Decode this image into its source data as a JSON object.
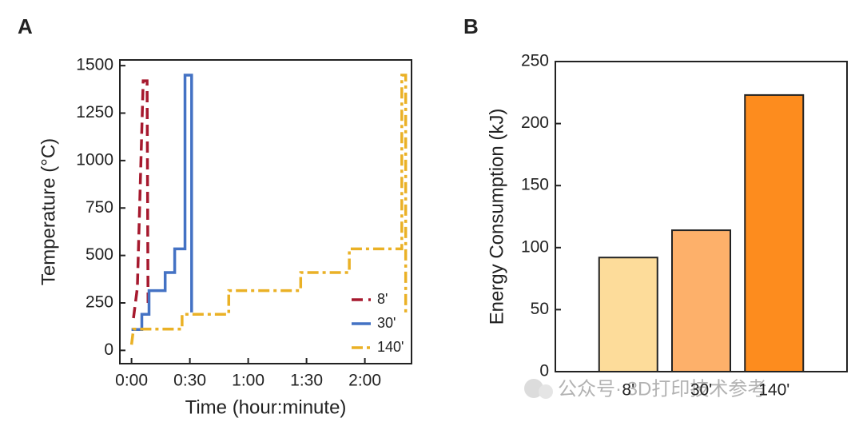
{
  "chart_data": [
    {
      "type": "line",
      "panel": "A",
      "xlabel": "Time (hour:minute)",
      "ylabel": "Temperature (°C)",
      "xlim": [
        -6,
        144
      ],
      "ylim": [
        -70,
        1530
      ],
      "xticks": [
        {
          "value": 0,
          "label": "0:00"
        },
        {
          "value": 30,
          "label": "0:30"
        },
        {
          "value": 60,
          "label": "1:00"
        },
        {
          "value": 90,
          "label": "1:30"
        },
        {
          "value": 120,
          "label": "2:00"
        }
      ],
      "yticks": [
        0,
        250,
        500,
        750,
        1000,
        1250,
        1500
      ],
      "legend": "lower right",
      "series": [
        {
          "name": "8'",
          "color": "#a6192e",
          "style": "dashed",
          "x": [
            1,
            2,
            3,
            6,
            8,
            8.5
          ],
          "values": [
            170,
            250,
            330,
            1420,
            1420,
            250
          ]
        },
        {
          "name": "30'",
          "color": "#4472c4",
          "style": "solid",
          "x": [
            0,
            5.3,
            5.3,
            9,
            9,
            17.3,
            17.3,
            22.2,
            22.2,
            27.5,
            27.5,
            30.9,
            30.9
          ],
          "values": [
            110,
            110,
            190,
            190,
            315,
            315,
            410,
            410,
            535,
            535,
            1450,
            1450,
            200
          ]
        },
        {
          "name": "140'",
          "color": "#eab126",
          "style": "dashdot",
          "x": [
            0,
            1,
            26,
            26,
            50,
            50,
            87,
            87,
            112,
            112,
            139,
            139,
            141,
            141
          ],
          "values": [
            30,
            112,
            112,
            190,
            190,
            315,
            315,
            410,
            410,
            535,
            535,
            1450,
            1450,
            200
          ]
        }
      ]
    },
    {
      "type": "bar",
      "panel": "B",
      "ylabel": "Energy Consumption (kJ)",
      "categories": [
        "8'",
        "30'",
        "140'"
      ],
      "values": [
        92,
        114,
        223
      ],
      "colors": [
        "#fddc9a",
        "#fdb06a",
        "#fd8c1e"
      ],
      "ylim": [
        0,
        250
      ],
      "yticks": [
        0,
        50,
        100,
        150,
        200,
        250
      ]
    }
  ],
  "watermark": "公众号· 3D打印技术参考"
}
